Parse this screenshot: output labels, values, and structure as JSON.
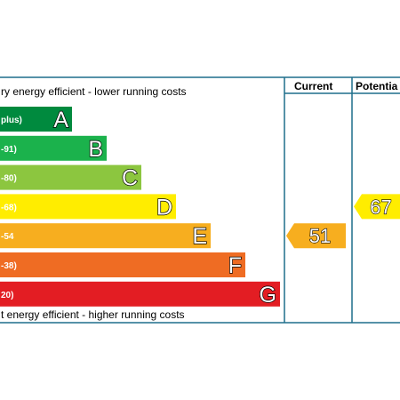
{
  "chart_data": {
    "type": "bar",
    "top_caption": "ry energy efficient - lower running costs",
    "bottom_caption": "t energy efficient - higher running costs",
    "columns": {
      "current": "Current",
      "potential": "Potentia"
    },
    "bands": [
      {
        "letter": "A",
        "range": "plus)",
        "color": "#008a3e"
      },
      {
        "letter": "B",
        "range": "-91)",
        "color": "#1bb24c"
      },
      {
        "letter": "C",
        "range": "-80)",
        "color": "#8cc63f"
      },
      {
        "letter": "D",
        "range": "-68)",
        "color": "#ffed00"
      },
      {
        "letter": "E",
        "range": "-54",
        "color": "#f7ae1f"
      },
      {
        "letter": "F",
        "range": "-38)",
        "color": "#ef6c23"
      },
      {
        "letter": "G",
        "range": "20)",
        "color": "#e31d23"
      }
    ],
    "current": {
      "value": "51",
      "band": "E",
      "color": "#f7ae1f"
    },
    "potential": {
      "value": "67",
      "band": "D",
      "color": "#ffed00"
    },
    "grid_color": "#1f6f8b"
  }
}
